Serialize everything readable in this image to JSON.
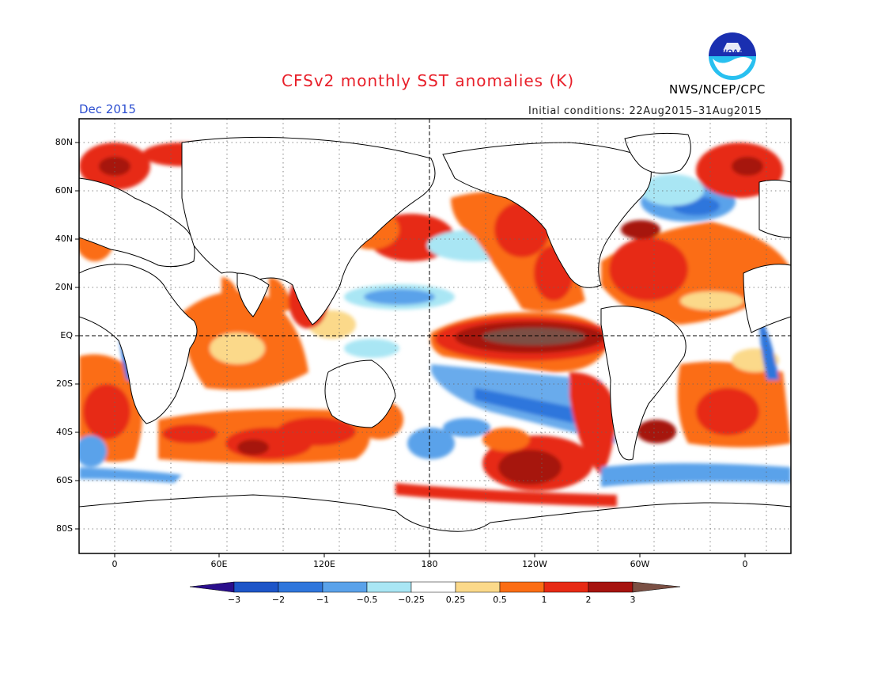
{
  "header": {
    "title": "CFSv2 monthly SST anomalies (K)",
    "agency": "NWS/NCEP/CPC",
    "logo_text": "NOAA",
    "valid_month": "Dec 2015",
    "initial_conditions": "Initial conditions: 22Aug2015–31Aug2015"
  },
  "map": {
    "projection": "cylindrical equidistant",
    "lon_range": [
      -20,
      360
    ],
    "lat_range": [
      -90,
      90
    ],
    "y_axis_labels": [
      "80N",
      "60N",
      "40N",
      "20N",
      "EQ",
      "20S",
      "40S",
      "60S",
      "80S"
    ],
    "x_axis_labels": [
      "0",
      "60E",
      "120E",
      "180",
      "120W",
      "60W",
      "0"
    ],
    "grid": "dotted, every 20° latitude and 30° longitude",
    "reference_lines": [
      "equator",
      "dateline"
    ]
  },
  "colorbar": {
    "tick_labels": [
      "−3",
      "−2",
      "−1",
      "−0.5",
      "−0.25",
      "0.25",
      "0.5",
      "1",
      "2",
      "3"
    ],
    "bins": [
      {
        "range": "< −3",
        "color": "#2a0e8c"
      },
      {
        "range": "−3 to −2",
        "color": "#1d55c8"
      },
      {
        "range": "−2 to −1",
        "color": "#2f76dc"
      },
      {
        "range": "−1 to −0.5",
        "color": "#5aa2ea"
      },
      {
        "range": "−0.5 to −0.25",
        "color": "#a9e6f4"
      },
      {
        "range": "−0.25 to 0.25",
        "color": "#ffffff"
      },
      {
        "range": "0.25 to 0.5",
        "color": "#fbd98a"
      },
      {
        "range": "0.5 to 1",
        "color": "#fb6d14"
      },
      {
        "range": "1 to 2",
        "color": "#e72a14"
      },
      {
        "range": "2 to 3",
        "color": "#a6130f"
      },
      {
        "range": "> 3",
        "color": "#7b5044"
      }
    ]
  }
}
